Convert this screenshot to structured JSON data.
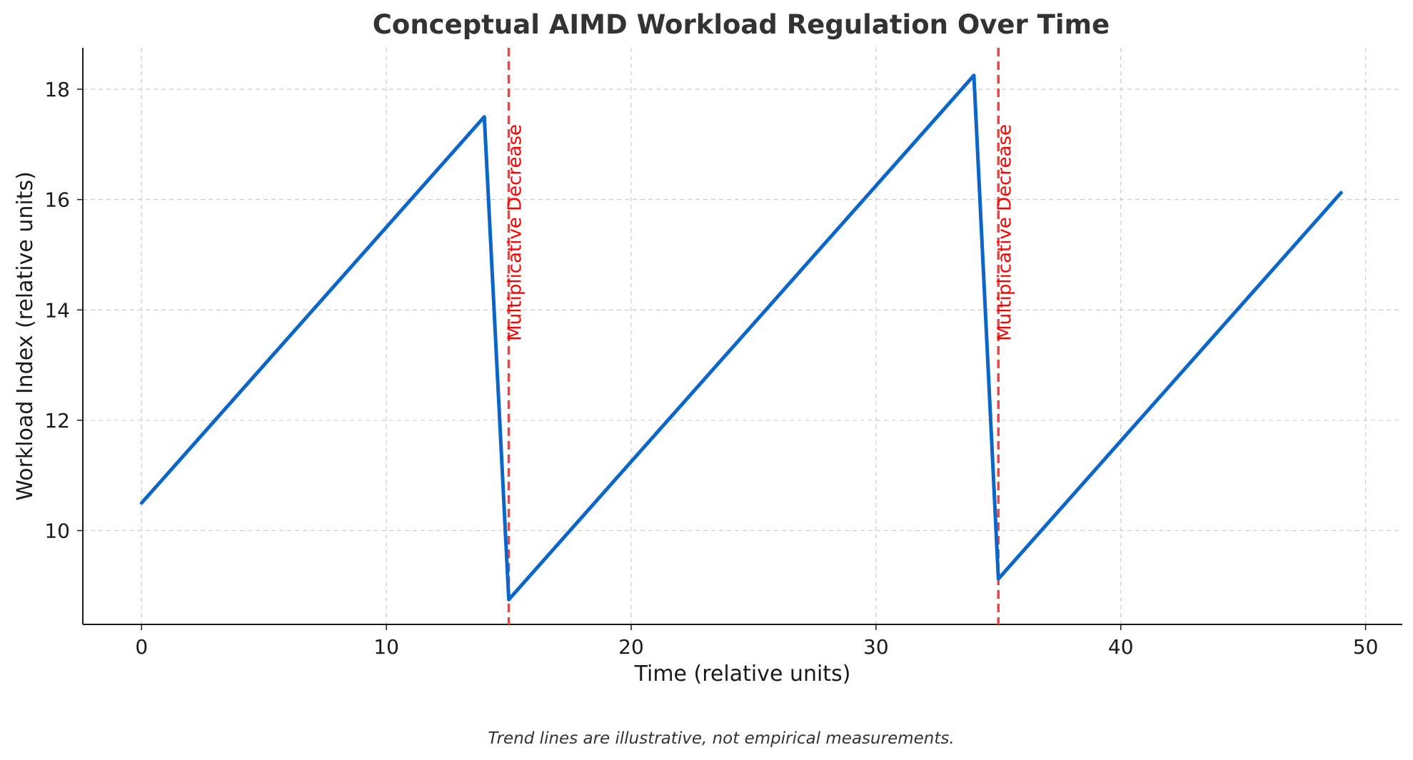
{
  "chart_data": {
    "type": "line",
    "title": "Conceptual AIMD Workload Regulation Over Time",
    "xlabel": "Time (relative units)",
    "ylabel": "Workload Index (relative units)",
    "xlim": [
      -2.4,
      51.5
    ],
    "ylim": [
      8.3,
      18.75
    ],
    "xticks": [
      0,
      10,
      20,
      30,
      40,
      50
    ],
    "yticks": [
      10,
      12,
      14,
      16,
      18
    ],
    "grid": true,
    "series": [
      {
        "color": "#0b66c8",
        "x": [
          0,
          14,
          15,
          34,
          35,
          49
        ],
        "y": [
          10.5,
          17.5,
          8.75,
          18.25,
          9.125,
          16.125
        ]
      }
    ],
    "annotations": [
      {
        "x": 15,
        "label": "Multiplicative Decrease",
        "color": "#ff0000",
        "line_color": "#ee4444"
      },
      {
        "x": 35,
        "label": "Multiplicative Decrease",
        "color": "#ff0000",
        "line_color": "#ee4444"
      }
    ],
    "caption": "Trend lines are illustrative, not empirical measurements."
  }
}
